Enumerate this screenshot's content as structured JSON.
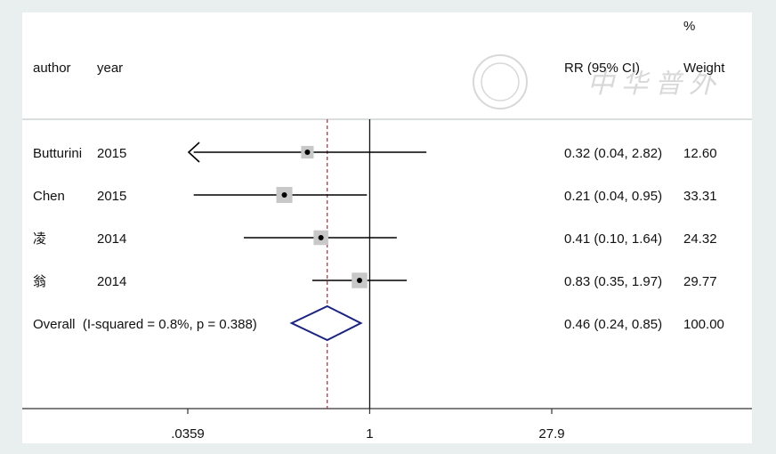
{
  "chart_data": {
    "type": "forest",
    "header": {
      "author": "author",
      "year": "year",
      "effect": "RR (95% CI)",
      "weight_pct": "%",
      "weight": "Weight"
    },
    "watermark": "中华普外",
    "x_scale": "log",
    "xlim": [
      0.0359,
      27.9
    ],
    "null_value": 1,
    "overall_line": 0.46,
    "ticks": [
      {
        "value": 0.0359,
        "label": ".0359"
      },
      {
        "value": 1,
        "label": "1"
      },
      {
        "value": 27.9,
        "label": "27.9"
      }
    ],
    "studies": [
      {
        "author": "Butturini",
        "year": "2015",
        "rr": 0.32,
        "lo": 0.04,
        "hi": 2.82,
        "ci_text": "0.32 (0.04, 2.82)",
        "weight": 12.6,
        "weight_text": "12.60",
        "arrow_left": true
      },
      {
        "author": "Chen",
        "year": "2015",
        "rr": 0.21,
        "lo": 0.04,
        "hi": 0.95,
        "ci_text": "0.21 (0.04, 0.95)",
        "weight": 33.31,
        "weight_text": "33.31",
        "arrow_left": false
      },
      {
        "author": "凌",
        "year": "2014",
        "rr": 0.41,
        "lo": 0.1,
        "hi": 1.64,
        "ci_text": "0.41 (0.10, 1.64)",
        "weight": 24.32,
        "weight_text": "24.32",
        "arrow_left": false
      },
      {
        "author": "翁",
        "year": "2014",
        "rr": 0.83,
        "lo": 0.35,
        "hi": 1.97,
        "ci_text": "0.83 (0.35, 1.97)",
        "weight": 29.77,
        "weight_text": "29.77",
        "arrow_left": false
      }
    ],
    "overall": {
      "label": "Overall  (I-squared = 0.8%, p = 0.388)",
      "rr": 0.46,
      "lo": 0.24,
      "hi": 0.85,
      "ci_text": "0.46 (0.24, 0.85)",
      "weight_text": "100.00"
    },
    "colors": {
      "background": "#ffffff",
      "frame": "#e8efee",
      "ci_line": "#000000",
      "weight_box": "#c8c8c8",
      "diamond": "#1a237e",
      "overall_line": "#a0303a",
      "watermark": "#d8d8d8"
    }
  }
}
